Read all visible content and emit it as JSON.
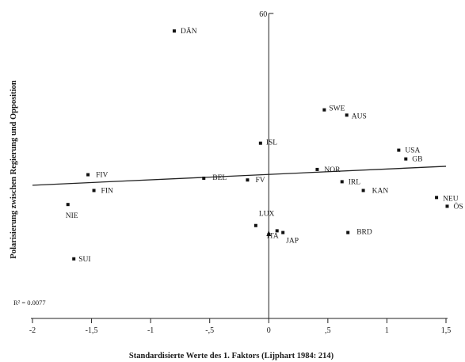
{
  "chart_data": {
    "type": "scatter",
    "title": "",
    "xlabel": "Standardisierte Werte des 1. Faktors (Lijphart 1984: 214)",
    "ylabel": "Polarisierung zwischen Regierung und Opposition",
    "xlim": [
      -2,
      1.5
    ],
    "ylim": [
      -27,
      60
    ],
    "x_ticks": [
      "-2",
      "-1,5",
      "-1",
      "-,5",
      "0",
      ",5",
      "1",
      "1,5"
    ],
    "x_tick_values": [
      -2,
      -1.5,
      -1,
      -0.5,
      0,
      0.5,
      1,
      1.5
    ],
    "y_tick_label": "60",
    "y_tick_value": 60,
    "r_squared_label": "R² = 0.0077",
    "grid": false,
    "points": [
      {
        "label": "DÄN",
        "x": -0.8,
        "y": 55
      },
      {
        "label": "SWE",
        "x": 0.47,
        "y": 32.5
      },
      {
        "label": "AUS",
        "x": 0.66,
        "y": 31
      },
      {
        "label": "ISL",
        "x": -0.07,
        "y": 23
      },
      {
        "label": "USA",
        "x": 1.1,
        "y": 21
      },
      {
        "label": "GB",
        "x": 1.16,
        "y": 18.5
      },
      {
        "label": "FIV",
        "x": -1.53,
        "y": 14
      },
      {
        "label": "BEL",
        "x": -0.55,
        "y": 13
      },
      {
        "label": "FV",
        "x": -0.18,
        "y": 12.5
      },
      {
        "label": "NOR",
        "x": 0.41,
        "y": 15.5
      },
      {
        "label": "IRL",
        "x": 0.62,
        "y": 12
      },
      {
        "label": "FIN",
        "x": -1.48,
        "y": 9.5
      },
      {
        "label": "KAN",
        "x": 0.8,
        "y": 9.5
      },
      {
        "label": "NEU",
        "x": 1.42,
        "y": 7.5
      },
      {
        "label": "ÖS",
        "x": 1.51,
        "y": 5
      },
      {
        "label": "NIE",
        "x": -1.7,
        "y": 5.5
      },
      {
        "label": "LUX",
        "x": -0.11,
        "y": -0.5
      },
      {
        "label": "ITA",
        "x": 0.07,
        "y": -2
      },
      {
        "label": "JAP",
        "x": 0.12,
        "y": -2.5
      },
      {
        "label": "BRD",
        "x": 0.67,
        "y": -2.5
      },
      {
        "label": "SUI",
        "x": -1.65,
        "y": -10
      }
    ],
    "regression_line": {
      "x": [
        -2,
        1.5
      ],
      "y": [
        11,
        16.4
      ]
    }
  }
}
